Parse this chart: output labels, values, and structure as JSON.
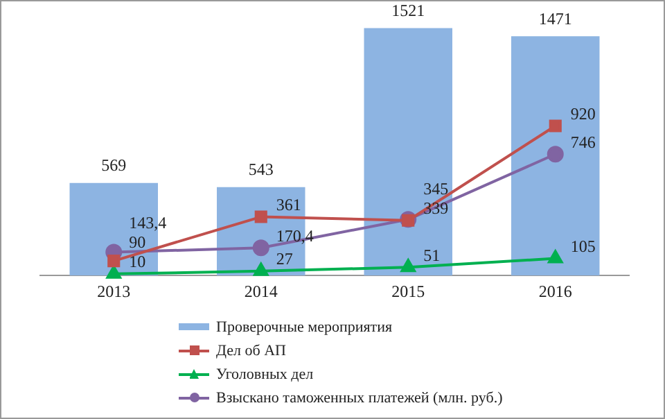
{
  "chart_data": {
    "type": "bar",
    "categories": [
      "2013",
      "2014",
      "2015",
      "2016"
    ],
    "relative": false,
    "data_labels": true,
    "grid": false,
    "legend": "bottom",
    "series": [
      {
        "name": "Проверочные мероприятия",
        "color": "#8db4e2",
        "values": [
          569,
          543,
          1521,
          1471
        ]
      },
      {
        "name": "Дел об АП",
        "type": "line",
        "color": "#c0504d",
        "marker": "square",
        "values": [
          90,
          361,
          339,
          920
        ]
      },
      {
        "name": "Уголовных дел",
        "type": "line",
        "color": "#00b050",
        "marker": "triangle",
        "values": [
          10,
          27,
          51,
          105
        ]
      },
      {
        "name": "Взыскано таможенных платежей (млн. руб.)",
        "type": "line",
        "color": "#8064a2",
        "marker": "circle",
        "values": [
          143.4,
          170.4,
          345,
          746
        ],
        "value_labels": [
          "143,4",
          "170,4",
          "345",
          "746"
        ]
      }
    ]
  }
}
